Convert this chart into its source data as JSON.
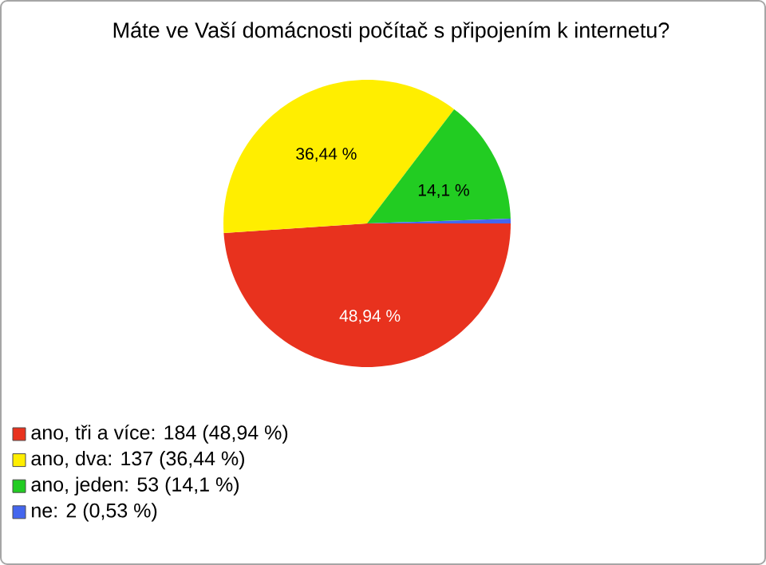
{
  "chart_data": {
    "type": "pie",
    "title": "Máte ve Vaší domácnosti počítač s připojením k internetu?",
    "categories": [
      "ano, tři a více: 184 (48,94 %)",
      "ano, dva: 137 (36,44 %)",
      "ano, jeden: 53 (14,1 %)",
      "ne: 2 (0,53 %)"
    ],
    "values": [
      48.94,
      36.44,
      14.1,
      0.53
    ],
    "colors": [
      "#e8321e",
      "#ffee00",
      "#22cc22",
      "#4466ee"
    ],
    "value_labels": [
      "48,94 %",
      "36,44 %",
      "14,1 %",
      null
    ],
    "legend": "bottom left"
  }
}
